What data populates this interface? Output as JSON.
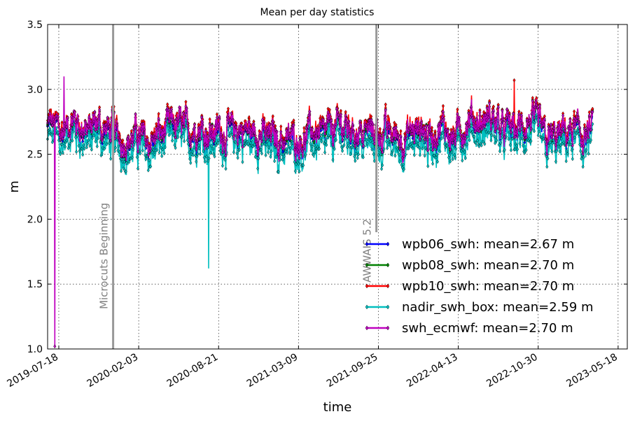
{
  "chart_data": {
    "type": "line",
    "title": "Mean per day statistics",
    "xlabel": "time",
    "ylabel": "m",
    "xlim": [
      "2019-06-20",
      "2023-06-10"
    ],
    "ylim": [
      1.0,
      3.5
    ],
    "x_ticks": [
      "2019-07-18",
      "2020-02-03",
      "2020-08-21",
      "2021-03-09",
      "2021-09-25",
      "2022-04-13",
      "2022-10-30",
      "2023-05-18"
    ],
    "y_ticks": [
      "1.0",
      "1.5",
      "2.0",
      "2.5",
      "3.0",
      "3.5"
    ],
    "grid": true,
    "legend_position": "lower-right",
    "data_range": [
      "2019-06-20",
      "2023-03-15"
    ],
    "series": [
      {
        "name": "wpb06_swh: mean=2.67 m",
        "color": "#0000ff",
        "mean": 2.67
      },
      {
        "name": "wpb08_swh: mean=2.70 m",
        "color": "#008000",
        "mean": 2.7
      },
      {
        "name": "wpb10_swh: mean=2.70 m",
        "color": "#ff0000",
        "mean": 2.7
      },
      {
        "name": "nadir_swh_box: mean=2.59 m",
        "color": "#00bfbf",
        "mean": 2.59
      },
      {
        "name": "swh_ecmwf: mean=2.70 m",
        "color": "#bf00bf",
        "mean": 2.7
      }
    ],
    "events": [
      {
        "label": "Microcuts Beginning",
        "date": "2019-12-01"
      },
      {
        "label": "AWWAIS 5.2",
        "date": "2021-09-20"
      }
    ],
    "notable_points": [
      {
        "series": "swh_ecmwf: mean=2.70 m",
        "date": "2019-07-08",
        "value": 1.02
      },
      {
        "series": "nadir_swh_box: mean=2.59 m",
        "date": "2020-07-27",
        "value": 1.62
      },
      {
        "series": "swh_ecmwf: mean=2.70 m",
        "date": "2019-07-31",
        "value": 3.1
      },
      {
        "series": "wpb10_swh: mean=2.70 m",
        "date": "2022-08-31",
        "value": 3.07
      }
    ]
  }
}
